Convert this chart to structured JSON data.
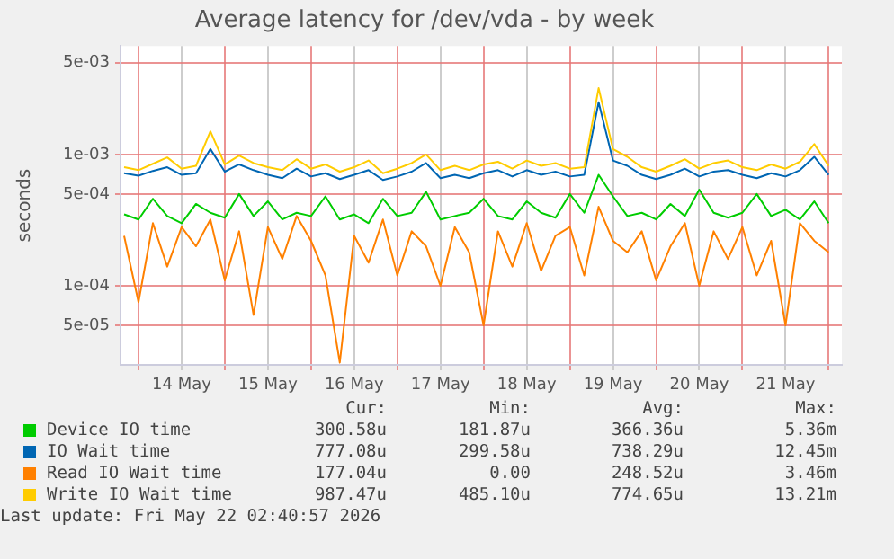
{
  "chart_data": {
    "type": "line",
    "title": "Average latency for /dev/vda - by week",
    "ylabel": "seconds",
    "log": "y",
    "grid": true,
    "legend": "bottom",
    "x": [
      "2026-05-13T20:00",
      "2026-05-14T00:00",
      "2026-05-14T04:00",
      "2026-05-14T08:00",
      "2026-05-14T12:00",
      "2026-05-14T16:00",
      "2026-05-14T20:00",
      "2026-05-15T00:00",
      "2026-05-15T04:00",
      "2026-05-15T08:00",
      "2026-05-15T12:00",
      "2026-05-15T16:00",
      "2026-05-15T20:00",
      "2026-05-16T00:00",
      "2026-05-16T04:00",
      "2026-05-16T08:00",
      "2026-05-16T12:00",
      "2026-05-16T16:00",
      "2026-05-16T20:00",
      "2026-05-17T00:00",
      "2026-05-17T04:00",
      "2026-05-17T08:00",
      "2026-05-17T12:00",
      "2026-05-17T16:00",
      "2026-05-17T20:00",
      "2026-05-18T00:00",
      "2026-05-18T04:00",
      "2026-05-18T08:00",
      "2026-05-18T12:00",
      "2026-05-18T16:00",
      "2026-05-18T20:00",
      "2026-05-19T00:00",
      "2026-05-19T04:00",
      "2026-05-19T08:00",
      "2026-05-19T12:00",
      "2026-05-19T16:00",
      "2026-05-19T20:00",
      "2026-05-20T00:00",
      "2026-05-20T04:00",
      "2026-05-20T08:00",
      "2026-05-20T12:00",
      "2026-05-20T16:00",
      "2026-05-20T20:00",
      "2026-05-21T00:00",
      "2026-05-21T04:00",
      "2026-05-21T08:00",
      "2026-05-21T12:00",
      "2026-05-21T16:00",
      "2026-05-21T20:00",
      "2026-05-22T00:00"
    ],
    "xlim": [
      "2026-05-13T19:00",
      "2026-05-22T03:40"
    ],
    "xticks": [
      {
        "value": "2026-05-14T00:00",
        "label": null
      },
      {
        "value": "2026-05-14T12:00",
        "label": "14 May"
      },
      {
        "value": "2026-05-15T00:00",
        "label": null
      },
      {
        "value": "2026-05-15T12:00",
        "label": "15 May"
      },
      {
        "value": "2026-05-16T00:00",
        "label": null
      },
      {
        "value": "2026-05-16T12:00",
        "label": "16 May"
      },
      {
        "value": "2026-05-17T00:00",
        "label": null
      },
      {
        "value": "2026-05-17T12:00",
        "label": "17 May"
      },
      {
        "value": "2026-05-18T00:00",
        "label": null
      },
      {
        "value": "2026-05-18T12:00",
        "label": "18 May"
      },
      {
        "value": "2026-05-19T00:00",
        "label": null
      },
      {
        "value": "2026-05-19T12:00",
        "label": "19 May"
      },
      {
        "value": "2026-05-20T00:00",
        "label": null
      },
      {
        "value": "2026-05-20T12:00",
        "label": "20 May"
      },
      {
        "value": "2026-05-21T00:00",
        "label": null
      },
      {
        "value": "2026-05-21T12:00",
        "label": "21 May"
      },
      {
        "value": "2026-05-22T00:00",
        "label": null
      }
    ],
    "ylim": [
      2.5e-05,
      0.0067
    ],
    "yticks": [
      {
        "value": 5e-05,
        "label": "5e-05"
      },
      {
        "value": 0.0001,
        "label": "1e-04"
      },
      {
        "value": 0.0005,
        "label": "5e-04"
      },
      {
        "value": 0.001,
        "label": "1e-03"
      },
      {
        "value": 0.005,
        "label": "5e-03"
      }
    ],
    "series": [
      {
        "name": "Device IO time",
        "color": "#00cc00",
        "values": [
          0.00035,
          0.00032,
          0.00046,
          0.00034,
          0.0003,
          0.00042,
          0.00036,
          0.00033,
          0.0005,
          0.00034,
          0.00044,
          0.00032,
          0.00036,
          0.00034,
          0.00048,
          0.00032,
          0.00035,
          0.0003,
          0.00046,
          0.00034,
          0.00036,
          0.00052,
          0.00032,
          0.00034,
          0.00036,
          0.00046,
          0.00034,
          0.00032,
          0.00044,
          0.00036,
          0.00033,
          0.0005,
          0.00036,
          0.0007,
          0.00048,
          0.00034,
          0.00036,
          0.00032,
          0.00042,
          0.00034,
          0.00054,
          0.00036,
          0.00033,
          0.00036,
          0.0005,
          0.00034,
          0.00038,
          0.00032,
          0.00044,
          0.0003
        ]
      },
      {
        "name": "IO Wait time",
        "color": "#0066b3",
        "values": [
          0.00072,
          0.00069,
          0.00075,
          0.0008,
          0.0007,
          0.00072,
          0.0011,
          0.00074,
          0.00084,
          0.00076,
          0.0007,
          0.00066,
          0.00078,
          0.00068,
          0.00072,
          0.00065,
          0.0007,
          0.00076,
          0.00064,
          0.00068,
          0.00074,
          0.00086,
          0.00066,
          0.0007,
          0.00066,
          0.00072,
          0.00076,
          0.00068,
          0.00076,
          0.0007,
          0.00074,
          0.00068,
          0.0007,
          0.0025,
          0.0009,
          0.00082,
          0.0007,
          0.00065,
          0.0007,
          0.00078,
          0.00068,
          0.00074,
          0.00076,
          0.0007,
          0.00066,
          0.00072,
          0.00068,
          0.00076,
          0.00096,
          0.0007
        ]
      },
      {
        "name": "Read IO Wait time",
        "color": "#ff8000",
        "values": [
          0.00024,
          7.5e-05,
          0.0003,
          0.00014,
          0.00028,
          0.0002,
          0.00032,
          0.00011,
          0.00026,
          6e-05,
          0.00028,
          0.00016,
          0.00034,
          0.00022,
          0.00012,
          2.6e-05,
          0.00024,
          0.00015,
          0.00032,
          0.00012,
          0.00026,
          0.0002,
          0.0001,
          0.00028,
          0.00018,
          5e-05,
          0.00026,
          0.00014,
          0.0003,
          0.00013,
          0.00024,
          0.00028,
          0.00012,
          0.0004,
          0.00022,
          0.00018,
          0.00026,
          0.00011,
          0.0002,
          0.0003,
          0.0001,
          0.00026,
          0.00016,
          0.00028,
          0.00012,
          0.00022,
          5e-05,
          0.0003,
          0.00022,
          0.00018
        ]
      },
      {
        "name": "Write IO Wait time",
        "color": "#ffcc00",
        "values": [
          0.0008,
          0.00076,
          0.00085,
          0.00095,
          0.00078,
          0.00082,
          0.0015,
          0.00084,
          0.00098,
          0.00086,
          0.0008,
          0.00076,
          0.00092,
          0.00078,
          0.00084,
          0.00074,
          0.0008,
          0.0009,
          0.00072,
          0.00078,
          0.00086,
          0.001,
          0.00076,
          0.00082,
          0.00076,
          0.00084,
          0.00088,
          0.00078,
          0.0009,
          0.00082,
          0.00086,
          0.00078,
          0.0008,
          0.0032,
          0.0011,
          0.00096,
          0.0008,
          0.00074,
          0.00082,
          0.00092,
          0.00078,
          0.00086,
          0.0009,
          0.0008,
          0.00076,
          0.00084,
          0.00078,
          0.00088,
          0.0012,
          0.00082
        ]
      }
    ],
    "annotations": [
      "Cur:",
      "Min:",
      "Avg:",
      "Max:",
      "300.58u",
      "181.87u",
      "366.36u",
      "5.36m",
      "777.08u",
      "299.58u",
      "738.29u",
      "12.45m",
      "177.04u",
      "0.00",
      "248.52u",
      "3.46m",
      "987.47u",
      "485.10u",
      "774.65u",
      "13.21m",
      "Last update: Fri May 22 02:40:57 2026"
    ]
  }
}
